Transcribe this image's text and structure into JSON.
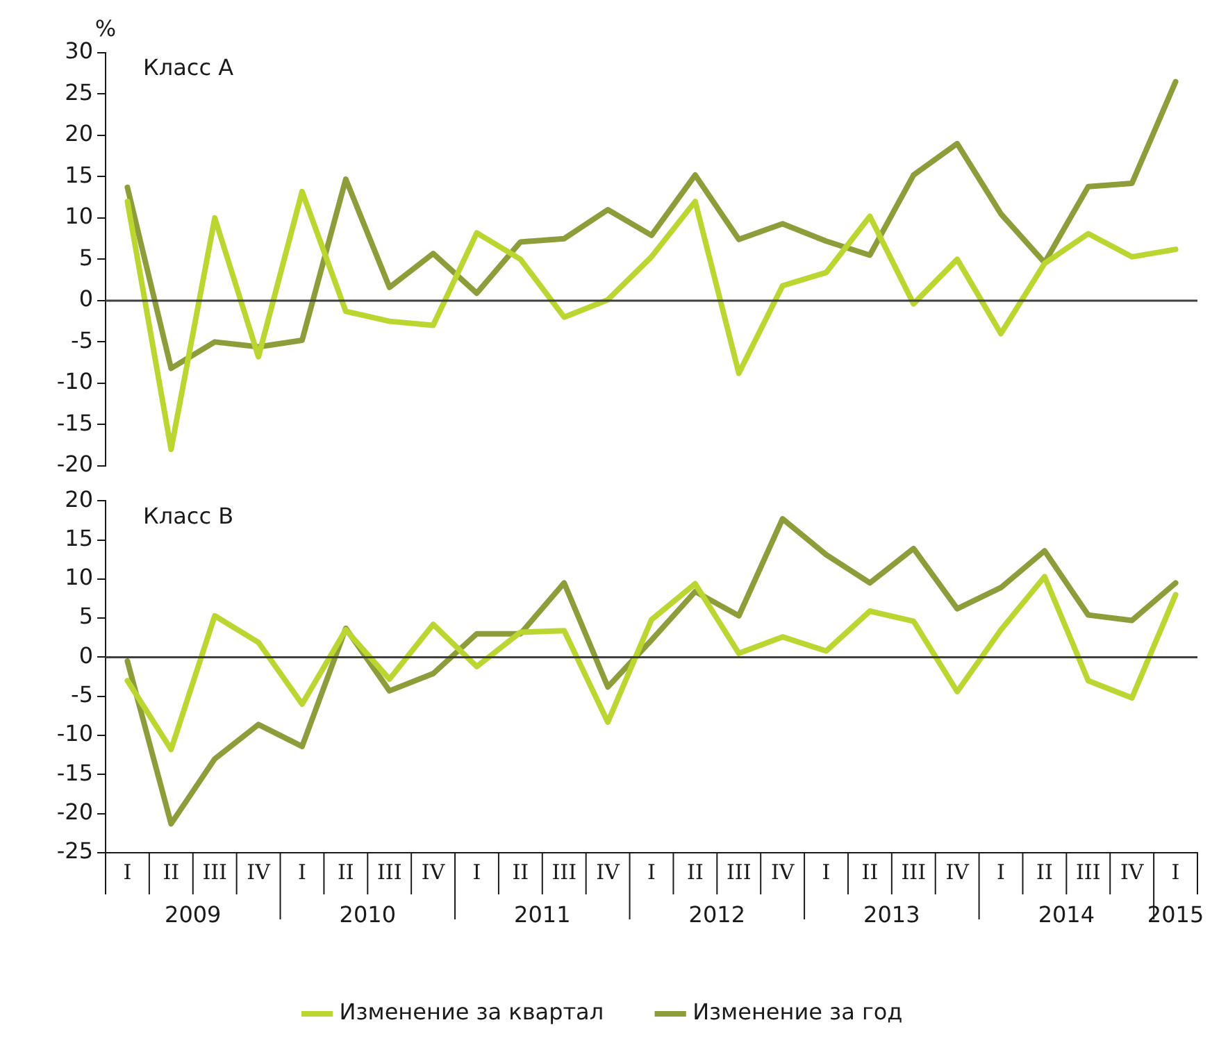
{
  "chart_data": [
    {
      "type": "line",
      "title": "Класс А",
      "ylabel": "%",
      "series": [
        {
          "color": "#bcd631",
          "values": [
            12,
            -18,
            10,
            -6.8,
            13.2,
            -1.3,
            -2.5,
            -3,
            8.2,
            5,
            -2,
            0.1,
            5.3,
            12,
            -8.8,
            1.8,
            3.4,
            10.2,
            -0.4,
            5,
            -4,
            4.5,
            8.1,
            5.3,
            6.2
          ]
        },
        {
          "color": "#8f9c3a",
          "values": [
            13.7,
            -8.2,
            -5,
            -5.6,
            -4.8,
            14.7,
            1.6,
            5.7,
            0.9,
            7.1,
            7.5,
            11,
            7.9,
            15.2,
            7.4,
            9.3,
            7.2,
            5.5,
            15.2,
            19,
            10.5,
            4.6,
            13.8,
            14.2,
            26.5
          ]
        }
      ],
      "ylim": [
        -20,
        30
      ],
      "yticks": [
        -20,
        -15,
        -10,
        -5,
        0,
        5,
        10,
        15,
        20,
        25,
        30
      ],
      "ref_lines": [
        {
          "axis": "y",
          "value": 0,
          "color": "#404040"
        }
      ],
      "tick_labels": "y",
      "grid": false,
      "legend": false,
      "marker": "none",
      "line_style": "solid"
    },
    {
      "type": "line",
      "title": "Класс В",
      "categories": [
        "I",
        "II",
        "III",
        "IV",
        "I",
        "II",
        "III",
        "IV",
        "I",
        "II",
        "III",
        "IV",
        "I",
        "II",
        "III",
        "IV",
        "I",
        "II",
        "III",
        "IV",
        "I",
        "II",
        "III",
        "IV",
        "I"
      ],
      "series": [
        {
          "name": "Изменение за квартал",
          "color": "#bcd631",
          "values": [
            -3,
            -11.8,
            5.3,
            1.9,
            -6,
            3.5,
            -2.8,
            4.2,
            -1.2,
            3.2,
            3.4,
            -8.3,
            4.8,
            9.4,
            0.5,
            2.6,
            0.8,
            5.9,
            4.6,
            -4.4,
            3.5,
            10.3,
            -3,
            -5.2,
            8
          ]
        },
        {
          "name": "Изменение за год",
          "color": "#8f9c3a",
          "values": [
            -0.5,
            -21.3,
            -13,
            -8.6,
            -11.4,
            3.7,
            -4.3,
            -2.1,
            3,
            3,
            9.5,
            -3.8,
            2.2,
            8.4,
            5.3,
            17.7,
            13.1,
            9.5,
            13.9,
            6.2,
            8.9,
            13.6,
            5.4,
            4.7,
            9.5
          ]
        }
      ],
      "ylim": [
        -25,
        20
      ],
      "yticks": [
        -25,
        -20,
        -15,
        -10,
        -5,
        0,
        5,
        10,
        15,
        20
      ],
      "ref_lines": [
        {
          "axis": "y",
          "value": 0,
          "color": "#404040"
        }
      ],
      "annotations": [
        "2009",
        "2010",
        "2011",
        "2012",
        "2013",
        "2014",
        "2015"
      ],
      "grid": false,
      "legend": "bottom",
      "marker": "none",
      "line_style": "solid"
    }
  ]
}
